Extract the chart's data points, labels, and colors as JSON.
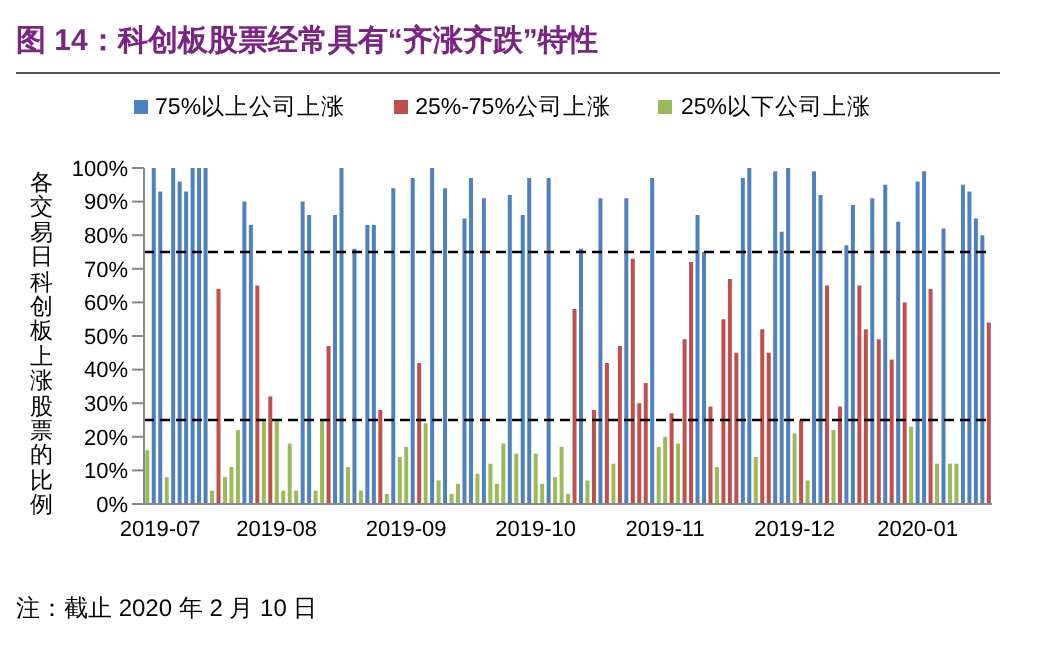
{
  "chart_data": {
    "type": "bar",
    "title": "图 14：科创板股票经常具有“齐涨齐跌”特性",
    "ylabel": "各交易日科创板上涨股票的比例",
    "annotations": [
      "注：截止 2020 年 2 月 10 日"
    ],
    "stacked": true,
    "legend": "top",
    "grid": false,
    "categories": [
      null,
      null,
      "2019-07",
      null,
      null,
      null,
      null,
      null,
      null,
      null,
      null,
      null,
      null,
      null,
      null,
      null,
      null,
      null,
      null,
      null,
      "2019-08",
      null,
      null,
      null,
      null,
      null,
      null,
      null,
      null,
      null,
      null,
      null,
      null,
      null,
      null,
      null,
      null,
      null,
      null,
      null,
      "2019-09",
      null,
      null,
      null,
      null,
      null,
      null,
      null,
      null,
      null,
      null,
      null,
      null,
      null,
      null,
      null,
      null,
      null,
      null,
      null,
      "2019-10",
      null,
      null,
      null,
      null,
      null,
      null,
      null,
      null,
      null,
      null,
      null,
      null,
      null,
      null,
      null,
      null,
      null,
      null,
      null,
      "2019-11",
      null,
      null,
      null,
      null,
      null,
      null,
      null,
      null,
      null,
      null,
      null,
      null,
      null,
      null,
      null,
      null,
      null,
      null,
      null,
      "2019-12",
      null,
      null,
      null,
      null,
      null,
      null,
      null,
      null,
      null,
      null,
      null,
      null,
      null,
      null,
      null,
      null,
      null,
      null,
      "2020-01",
      null,
      null,
      null,
      null,
      null,
      null,
      null,
      null,
      null,
      null,
      null
    ],
    "series": [
      {
        "name": "75%以上公司上涨",
        "color": "#4f81bd",
        "values": [
          null,
          100,
          93,
          null,
          100,
          96,
          93,
          100,
          100,
          100,
          null,
          null,
          null,
          null,
          null,
          90,
          83,
          null,
          null,
          null,
          null,
          null,
          null,
          null,
          90,
          86,
          null,
          null,
          null,
          86,
          100,
          null,
          76,
          null,
          83,
          83,
          null,
          null,
          94,
          null,
          null,
          97,
          null,
          null,
          100,
          null,
          94,
          null,
          null,
          85,
          97,
          null,
          91,
          null,
          null,
          null,
          92,
          null,
          86,
          97,
          null,
          null,
          97,
          null,
          null,
          null,
          null,
          76,
          null,
          null,
          91,
          null,
          null,
          null,
          91,
          null,
          null,
          null,
          97,
          null,
          null,
          null,
          null,
          null,
          null,
          86,
          75,
          null,
          null,
          null,
          null,
          null,
          97,
          100,
          null,
          null,
          null,
          99,
          81,
          100,
          null,
          null,
          null,
          99,
          92,
          null,
          null,
          null,
          77,
          89,
          null,
          null,
          91,
          null,
          95,
          null,
          84,
          null,
          null,
          96,
          99,
          null,
          null,
          82,
          null,
          null,
          95,
          93,
          85,
          80,
          null
        ]
      },
      {
        "name": "25%-75%公司上涨",
        "color": "#c0504d",
        "values": [
          null,
          null,
          null,
          null,
          null,
          null,
          null,
          null,
          null,
          null,
          null,
          64,
          null,
          null,
          null,
          null,
          null,
          65,
          null,
          32,
          null,
          null,
          null,
          null,
          null,
          null,
          null,
          null,
          47,
          null,
          null,
          null,
          null,
          null,
          null,
          null,
          28,
          null,
          null,
          null,
          null,
          null,
          42,
          null,
          null,
          null,
          null,
          null,
          null,
          null,
          null,
          null,
          null,
          null,
          null,
          null,
          null,
          null,
          null,
          null,
          null,
          null,
          null,
          null,
          null,
          null,
          58,
          null,
          null,
          28,
          null,
          42,
          null,
          47,
          null,
          73,
          30,
          36,
          null,
          null,
          null,
          27,
          null,
          49,
          72,
          null,
          null,
          29,
          null,
          55,
          67,
          45,
          null,
          null,
          null,
          52,
          45,
          null,
          null,
          null,
          null,
          25,
          null,
          null,
          null,
          65,
          null,
          29,
          null,
          null,
          65,
          52,
          null,
          49,
          null,
          43,
          null,
          60,
          null,
          null,
          null,
          64,
          null,
          null,
          null,
          null,
          null,
          null,
          null,
          null,
          54
        ]
      },
      {
        "name": "25%以下公司上涨",
        "color": "#9bbb59",
        "values": [
          16,
          null,
          null,
          8,
          null,
          null,
          null,
          null,
          null,
          null,
          4,
          null,
          8,
          11,
          22,
          null,
          null,
          null,
          25,
          null,
          25,
          4,
          18,
          4,
          null,
          null,
          4,
          25,
          null,
          null,
          null,
          11,
          null,
          4,
          null,
          null,
          null,
          3,
          null,
          14,
          17,
          null,
          null,
          24,
          null,
          7,
          null,
          3,
          6,
          null,
          null,
          9,
          null,
          12,
          6,
          18,
          null,
          15,
          null,
          null,
          15,
          6,
          null,
          8,
          17,
          3,
          null,
          null,
          7,
          null,
          null,
          null,
          12,
          null,
          null,
          null,
          null,
          null,
          null,
          17,
          20,
          null,
          18,
          null,
          null,
          null,
          null,
          null,
          11,
          null,
          null,
          null,
          null,
          null,
          14,
          null,
          null,
          null,
          null,
          null,
          21,
          null,
          7,
          null,
          null,
          null,
          22,
          null,
          null,
          null,
          null,
          null,
          null,
          null,
          null,
          null,
          null,
          null,
          23,
          null,
          null,
          null,
          12,
          null,
          12,
          12,
          null,
          null,
          null,
          null,
          null
        ]
      }
    ],
    "ylim": [
      0,
      100
    ],
    "yticks": [
      {
        "value": 0,
        "label": "0%"
      },
      {
        "value": 10,
        "label": "10%"
      },
      {
        "value": 20,
        "label": "20%"
      },
      {
        "value": 30,
        "label": "30%"
      },
      {
        "value": 40,
        "label": "40%"
      },
      {
        "value": 50,
        "label": "50%"
      },
      {
        "value": 60,
        "label": "60%"
      },
      {
        "value": 70,
        "label": "70%"
      },
      {
        "value": 80,
        "label": "80%"
      },
      {
        "value": 90,
        "label": "90%"
      },
      {
        "value": 100,
        "label": "100%"
      }
    ],
    "ref_lines": [
      {
        "axis": "y",
        "value": 75,
        "color": "#000000",
        "line_style": "dashed"
      },
      {
        "axis": "y",
        "value": 25,
        "color": "#000000",
        "line_style": "dashed"
      }
    ]
  }
}
